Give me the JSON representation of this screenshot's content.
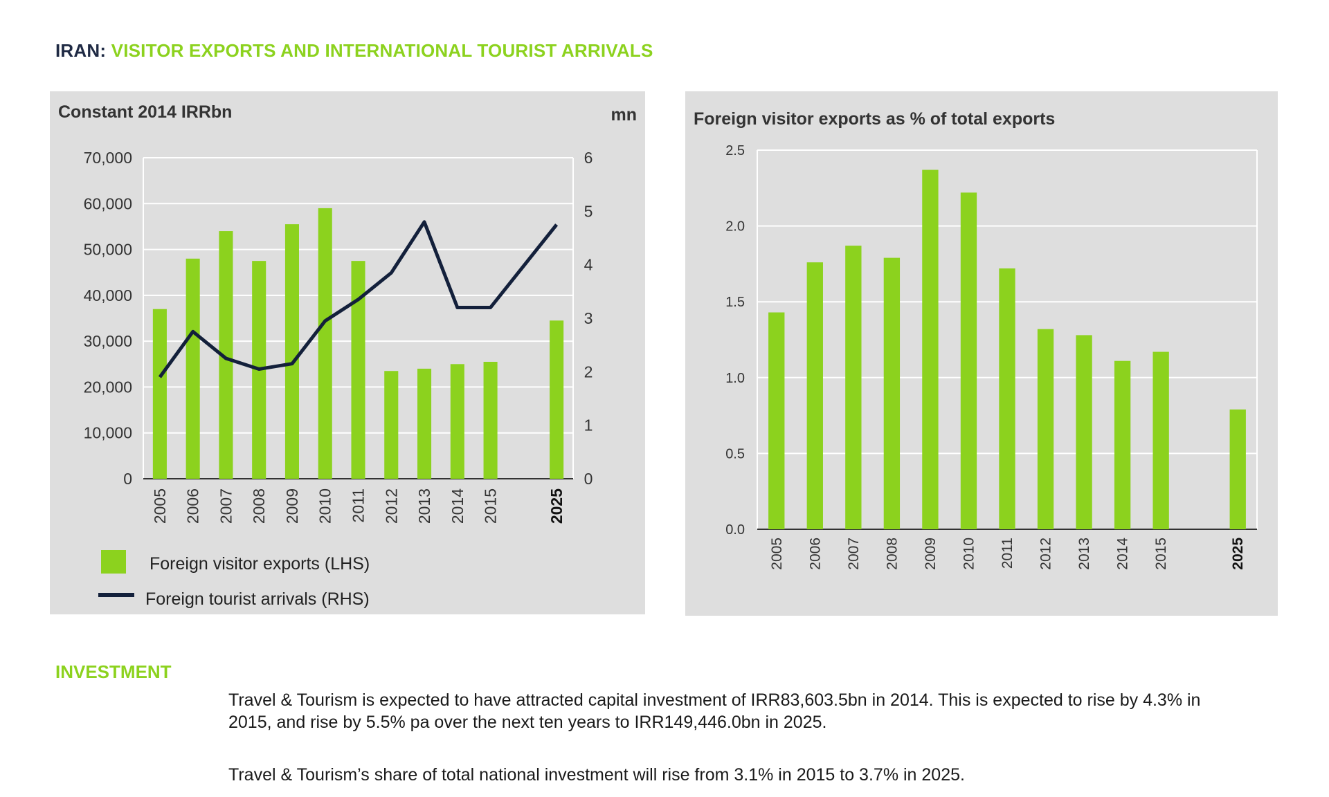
{
  "page": {
    "title_country": "IRAN:",
    "title_subtitle": "VISITOR EXPORTS AND INTERNATIONAL TOURIST ARRIVALS"
  },
  "colors": {
    "bar": "#8cd21e",
    "line": "#13203b",
    "panel": "#dedede",
    "grid": "#ffffff",
    "text": "#222222"
  },
  "chart_data": [
    {
      "type": "bar+line",
      "title_left": "Constant 2014 IRRbn",
      "title_right": "mn",
      "categories": [
        "2005",
        "2006",
        "2007",
        "2008",
        "2009",
        "2010",
        "2011",
        "2012",
        "2013",
        "2014",
        "2015",
        "",
        "2025"
      ],
      "bold_categories": [
        "2025"
      ],
      "y_left": {
        "min": 0,
        "max": 70000,
        "ticks": [
          "0",
          "10,000",
          "20,000",
          "30,000",
          "40,000",
          "50,000",
          "60,000",
          "70,000"
        ]
      },
      "y_right": {
        "min": 0,
        "max": 6,
        "ticks": [
          "0",
          "1",
          "2",
          "3",
          "4",
          "5",
          "6"
        ]
      },
      "series": [
        {
          "name": "Foreign visitor exports (LHS)",
          "type": "bar",
          "axis": "left",
          "values": [
            37000,
            48000,
            54000,
            47500,
            55500,
            59000,
            47500,
            23500,
            24000,
            25000,
            25500,
            null,
            34500
          ]
        },
        {
          "name": "Foreign tourist arrivals (RHS)",
          "type": "line",
          "axis": "right",
          "values": [
            1.9,
            2.75,
            2.25,
            2.05,
            2.15,
            2.95,
            3.35,
            3.85,
            4.8,
            3.2,
            3.2,
            null,
            4.75
          ]
        }
      ],
      "legend": [
        "Foreign visitor exports (LHS)",
        "Foreign tourist arrivals (RHS)"
      ]
    },
    {
      "type": "bar",
      "title": "Foreign visitor exports as % of total exports",
      "categories": [
        "2005",
        "2006",
        "2007",
        "2008",
        "2009",
        "2010",
        "2011",
        "2012",
        "2013",
        "2014",
        "2015",
        "",
        "2025"
      ],
      "bold_categories": [
        "2025"
      ],
      "values": [
        1.43,
        1.76,
        1.87,
        1.79,
        2.37,
        2.22,
        1.72,
        1.32,
        1.28,
        1.11,
        1.17,
        null,
        0.79
      ],
      "ylim": [
        0,
        2.5
      ],
      "yticks": [
        "0.0",
        "0.5",
        "1.0",
        "1.5",
        "2.0",
        "2.5"
      ]
    }
  ],
  "investment": {
    "heading": "INVESTMENT",
    "paragraph_1": "Travel & Tourism is expected to have attracted capital investment of IRR83,603.5bn in 2014.  This is expected to rise by 4.3% in 2015, and rise by 5.5% pa over the next ten years to IRR149,446.0bn in 2025.",
    "paragraph_2": "Travel & Tourism’s share of total national investment will rise from 3.1% in 2015 to 3.7%  in 2025."
  }
}
